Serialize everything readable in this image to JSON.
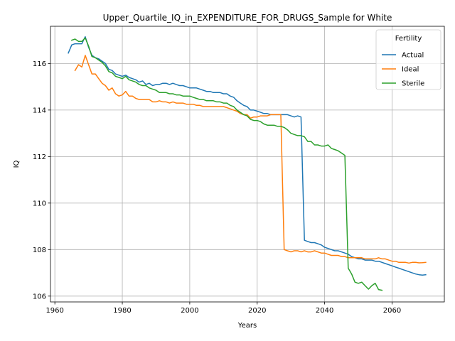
{
  "chart_data": {
    "type": "line",
    "title": "Upper_Quartile_IQ_in_EXPENDITURE_FOR_DRUGS_Sample for White",
    "xlabel": "Years",
    "ylabel": "IQ",
    "xlim": [
      1958.7,
      2075.5
    ],
    "ylim": [
      105.75,
      117.6
    ],
    "xticks": [
      1960,
      1980,
      2000,
      2020,
      2040,
      2060
    ],
    "yticks": [
      106,
      108,
      110,
      112,
      114,
      116
    ],
    "grid": true,
    "legend": {
      "title": "Fertility",
      "placement": "top-right"
    },
    "series": [
      {
        "name": "Actual",
        "color": "#1f77b4",
        "x": [
          1964,
          1965,
          1966,
          1967,
          1968,
          1969,
          1970,
          1971,
          1972,
          1973,
          1974,
          1975,
          1976,
          1977,
          1978,
          1979,
          1980,
          1981,
          1982,
          1983,
          1984,
          1985,
          1986,
          1987,
          1988,
          1989,
          1990,
          1991,
          1992,
          1993,
          1994,
          1995,
          1996,
          1997,
          1998,
          1999,
          2000,
          2001,
          2002,
          2003,
          2004,
          2005,
          2006,
          2007,
          2008,
          2009,
          2010,
          2011,
          2012,
          2013,
          2014,
          2015,
          2016,
          2017,
          2018,
          2019,
          2020,
          2021,
          2022,
          2023,
          2024,
          2025,
          2026,
          2027,
          2028,
          2029,
          2030,
          2031,
          2032,
          2033,
          2034,
          2035,
          2036,
          2037,
          2038,
          2039,
          2040,
          2041,
          2042,
          2043,
          2044,
          2045,
          2046,
          2047,
          2048,
          2049,
          2050,
          2051,
          2052,
          2053,
          2054,
          2055,
          2056,
          2057,
          2058,
          2059,
          2060,
          2061,
          2062,
          2063,
          2064,
          2065,
          2066,
          2067,
          2068,
          2069,
          2070
        ],
        "values": [
          116.45,
          116.8,
          116.85,
          116.85,
          116.85,
          117.15,
          116.7,
          116.35,
          116.25,
          116.2,
          116.1,
          116.0,
          115.75,
          115.7,
          115.55,
          115.5,
          115.45,
          115.5,
          115.4,
          115.35,
          115.3,
          115.2,
          115.25,
          115.1,
          115.15,
          115.05,
          115.1,
          115.1,
          115.15,
          115.15,
          115.1,
          115.15,
          115.1,
          115.05,
          115.05,
          115.0,
          114.95,
          114.95,
          114.95,
          114.9,
          114.85,
          114.8,
          114.8,
          114.75,
          114.75,
          114.75,
          114.7,
          114.7,
          114.6,
          114.55,
          114.4,
          114.3,
          114.2,
          114.15,
          114.0,
          114.0,
          113.95,
          113.9,
          113.85,
          113.85,
          113.8,
          113.8,
          113.8,
          113.8,
          113.8,
          113.8,
          113.75,
          113.7,
          113.75,
          113.7,
          108.4,
          108.35,
          108.3,
          108.3,
          108.25,
          108.2,
          108.1,
          108.05,
          108.0,
          107.95,
          107.95,
          107.9,
          107.85,
          107.8,
          107.7,
          107.65,
          107.6,
          107.6,
          107.55,
          107.55,
          107.55,
          107.5,
          107.5,
          107.45,
          107.4,
          107.35,
          107.3,
          107.25,
          107.2,
          107.15,
          107.1,
          107.05,
          107.0,
          106.95,
          106.92,
          106.9,
          106.92
        ]
      },
      {
        "name": "Ideal",
        "color": "#ff7f0e",
        "x": [
          1966,
          1967,
          1968,
          1969,
          1970,
          1971,
          1972,
          1973,
          1974,
          1975,
          1976,
          1977,
          1978,
          1979,
          1980,
          1981,
          1982,
          1983,
          1984,
          1985,
          1986,
          1987,
          1988,
          1989,
          1990,
          1991,
          1992,
          1993,
          1994,
          1995,
          1996,
          1997,
          1998,
          1999,
          2000,
          2001,
          2002,
          2003,
          2004,
          2005,
          2006,
          2007,
          2008,
          2009,
          2010,
          2011,
          2012,
          2013,
          2014,
          2015,
          2016,
          2017,
          2018,
          2019,
          2020,
          2021,
          2022,
          2023,
          2024,
          2025,
          2026,
          2027,
          2028,
          2029,
          2030,
          2031,
          2032,
          2033,
          2034,
          2035,
          2036,
          2037,
          2038,
          2039,
          2040,
          2041,
          2042,
          2043,
          2044,
          2045,
          2046,
          2047,
          2048,
          2049,
          2050,
          2051,
          2052,
          2053,
          2054,
          2055,
          2056,
          2057,
          2058,
          2059,
          2060,
          2061,
          2062,
          2063,
          2064,
          2065,
          2066,
          2067,
          2068,
          2069,
          2070
        ],
        "values": [
          115.7,
          115.95,
          115.85,
          116.35,
          115.95,
          115.55,
          115.55,
          115.35,
          115.15,
          115.05,
          114.85,
          114.95,
          114.7,
          114.6,
          114.65,
          114.8,
          114.6,
          114.6,
          114.5,
          114.45,
          114.45,
          114.45,
          114.45,
          114.35,
          114.35,
          114.4,
          114.35,
          114.35,
          114.3,
          114.35,
          114.3,
          114.3,
          114.3,
          114.25,
          114.25,
          114.25,
          114.2,
          114.2,
          114.15,
          114.15,
          114.15,
          114.15,
          114.15,
          114.15,
          114.15,
          114.1,
          114.05,
          114.0,
          113.95,
          113.85,
          113.8,
          113.8,
          113.65,
          113.7,
          113.7,
          113.75,
          113.75,
          113.75,
          113.8,
          113.8,
          113.8,
          113.8,
          108.0,
          107.95,
          107.9,
          107.95,
          107.95,
          107.9,
          107.95,
          107.9,
          107.9,
          107.95,
          107.9,
          107.85,
          107.85,
          107.8,
          107.75,
          107.75,
          107.75,
          107.7,
          107.7,
          107.65,
          107.65,
          107.65,
          107.65,
          107.65,
          107.6,
          107.6,
          107.6,
          107.6,
          107.65,
          107.6,
          107.6,
          107.55,
          107.5,
          107.5,
          107.45,
          107.45,
          107.45,
          107.42,
          107.45,
          107.45,
          107.43,
          107.44,
          107.45
        ]
      },
      {
        "name": "Sterile",
        "color": "#2ca02c",
        "x": [
          1965,
          1966,
          1967,
          1968,
          1969,
          1970,
          1971,
          1972,
          1973,
          1974,
          1975,
          1976,
          1977,
          1978,
          1979,
          1980,
          1981,
          1982,
          1983,
          1984,
          1985,
          1986,
          1987,
          1988,
          1989,
          1990,
          1991,
          1992,
          1993,
          1994,
          1995,
          1996,
          1997,
          1998,
          1999,
          2000,
          2001,
          2002,
          2003,
          2004,
          2005,
          2006,
          2007,
          2008,
          2009,
          2010,
          2011,
          2012,
          2013,
          2014,
          2015,
          2016,
          2017,
          2018,
          2019,
          2020,
          2021,
          2022,
          2023,
          2024,
          2025,
          2026,
          2027,
          2028,
          2029,
          2030,
          2031,
          2032,
          2033,
          2034,
          2035,
          2036,
          2037,
          2038,
          2039,
          2040,
          2041,
          2042,
          2043,
          2044,
          2045,
          2046,
          2047,
          2048,
          2049,
          2050,
          2051,
          2052,
          2053,
          2054,
          2055,
          2056,
          2057
        ],
        "values": [
          117.0,
          117.05,
          116.95,
          116.95,
          117.1,
          116.75,
          116.3,
          116.25,
          116.15,
          116.05,
          115.9,
          115.65,
          115.6,
          115.45,
          115.4,
          115.35,
          115.45,
          115.3,
          115.25,
          115.2,
          115.1,
          115.05,
          115.05,
          114.95,
          114.9,
          114.85,
          114.75,
          114.75,
          114.75,
          114.7,
          114.7,
          114.65,
          114.65,
          114.6,
          114.6,
          114.6,
          114.55,
          114.5,
          114.45,
          114.45,
          114.4,
          114.4,
          114.4,
          114.35,
          114.35,
          114.3,
          114.3,
          114.2,
          114.15,
          114.0,
          113.9,
          113.8,
          113.75,
          113.6,
          113.55,
          113.55,
          113.5,
          113.4,
          113.35,
          113.35,
          113.35,
          113.3,
          113.3,
          113.25,
          113.15,
          113.0,
          112.95,
          112.9,
          112.9,
          112.85,
          112.65,
          112.65,
          112.5,
          112.5,
          112.45,
          112.45,
          112.5,
          112.35,
          112.3,
          112.25,
          112.15,
          112.05,
          107.2,
          106.95,
          106.6,
          106.55,
          106.6,
          106.45,
          106.3,
          106.45,
          106.55,
          106.28,
          106.25
        ]
      }
    ]
  }
}
